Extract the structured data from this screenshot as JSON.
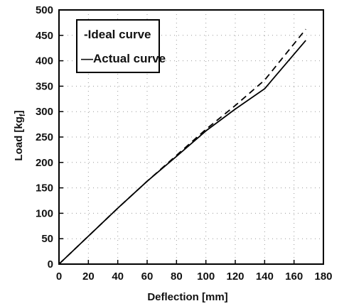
{
  "chart_data": {
    "type": "line",
    "xlabel": "Deflection  [mm]",
    "ylabel": "Load  [kg",
    "ylabel_sub": "f",
    "ylabel_close": "]",
    "xlim": [
      0,
      180
    ],
    "ylim": [
      0,
      500
    ],
    "xticks": [
      0,
      20,
      40,
      60,
      80,
      100,
      120,
      140,
      160,
      180
    ],
    "yticks": [
      0,
      50,
      100,
      150,
      200,
      250,
      300,
      350,
      400,
      450,
      500
    ],
    "grid": true,
    "legend_position": "top-left",
    "series": [
      {
        "name": "Ideal curve",
        "legend_label": "-Ideal curve",
        "style": "dashed",
        "x": [
          0,
          20,
          40,
          60,
          80,
          100,
          120,
          140,
          168
        ],
        "y": [
          0,
          55,
          110,
          163,
          214,
          265,
          312,
          362,
          462
        ]
      },
      {
        "name": "Actual curve",
        "legend_label": "—Actual curve",
        "style": "solid",
        "x": [
          0,
          20,
          40,
          60,
          80,
          100,
          120,
          140,
          168
        ],
        "y": [
          0,
          55,
          110,
          163,
          212,
          262,
          305,
          345,
          440
        ]
      }
    ]
  }
}
